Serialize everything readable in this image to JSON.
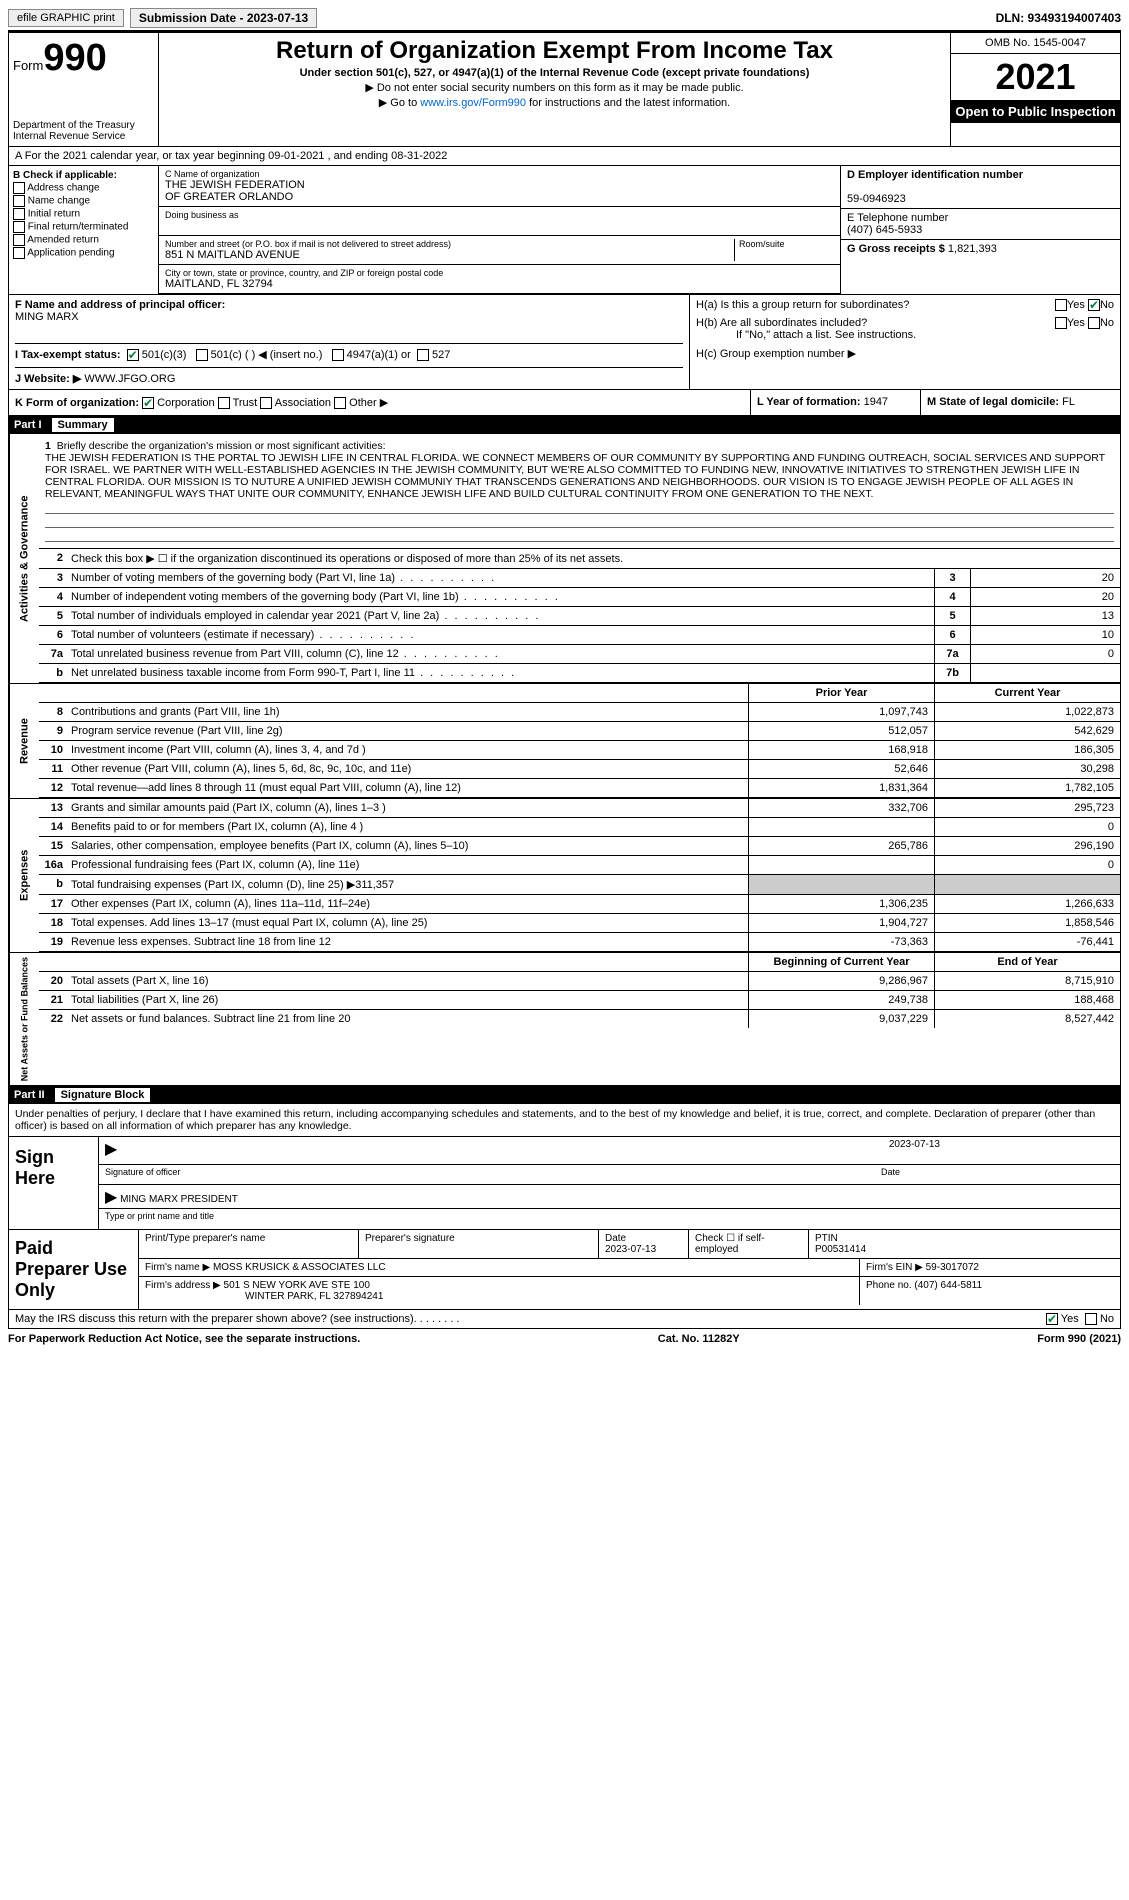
{
  "top": {
    "efile": "efile GRAPHIC print",
    "submission_label": "Submission Date - 2023-07-13",
    "dln": "DLN: 93493194007403"
  },
  "header": {
    "form_word": "Form",
    "form_num": "990",
    "dept": "Department of the Treasury",
    "irs": "Internal Revenue Service",
    "title": "Return of Organization Exempt From Income Tax",
    "sub": "Under section 501(c), 527, or 4947(a)(1) of the Internal Revenue Code (except private foundations)",
    "note1": "▶ Do not enter social security numbers on this form as it may be made public.",
    "note2_pre": "▶ Go to ",
    "note2_link": "www.irs.gov/Form990",
    "note2_post": " for instructions and the latest information.",
    "omb": "OMB No. 1545-0047",
    "year": "2021",
    "open": "Open to Public Inspection"
  },
  "line_a": "A For the 2021 calendar year, or tax year beginning 09-01-2021   , and ending 08-31-2022",
  "box_b": {
    "title": "B Check if applicable:",
    "items": [
      "Address change",
      "Name change",
      "Initial return",
      "Final return/terminated",
      "Amended return",
      "Application pending"
    ]
  },
  "box_c": {
    "name_label": "C Name of organization",
    "name1": "THE JEWISH FEDERATION",
    "name2": "OF GREATER ORLANDO",
    "dba_label": "Doing business as",
    "dba": "",
    "addr_label": "Number and street (or P.O. box if mail is not delivered to street address)",
    "room_label": "Room/suite",
    "addr": "851 N MAITLAND AVENUE",
    "city_label": "City or town, state or province, country, and ZIP or foreign postal code",
    "city": "MAITLAND, FL  32794"
  },
  "box_d": {
    "label": "D Employer identification number",
    "val": "59-0946923"
  },
  "box_e": {
    "label": "E Telephone number",
    "val": "(407) 645-5933"
  },
  "box_g": {
    "label": "G Gross receipts $",
    "val": "1,821,393"
  },
  "box_f": {
    "label": "F  Name and address of principal officer:",
    "val": "MING MARX"
  },
  "box_h": {
    "a": "H(a)  Is this a group return for subordinates?",
    "b": "H(b)  Are all subordinates included?",
    "bnote": "If \"No,\" attach a list. See instructions.",
    "c": "H(c)  Group exemption number ▶"
  },
  "box_i": {
    "label": "I  Tax-exempt status:",
    "c3": "501(c)(3)",
    "c": "501(c) (   ) ◀ (insert no.)",
    "a1": "4947(a)(1) or",
    "s527": "527"
  },
  "box_j": {
    "label": "J  Website: ▶",
    "val": "WWW.JFGO.ORG"
  },
  "box_k": {
    "label": "K Form of organization:",
    "corp": "Corporation",
    "trust": "Trust",
    "assoc": "Association",
    "other": "Other ▶"
  },
  "box_l": {
    "label": "L Year of formation:",
    "val": "1947"
  },
  "box_m": {
    "label": "M State of legal domicile:",
    "val": "FL"
  },
  "part1": {
    "num": "Part I",
    "title": "Summary"
  },
  "gov": {
    "tab": "Activities & Governance",
    "l1": "Briefly describe the organization's mission or most significant activities:",
    "mission": "THE JEWISH FEDERATION IS THE PORTAL TO JEWISH LIFE IN CENTRAL FLORIDA. WE CONNECT MEMBERS OF OUR COMMUNITY BY SUPPORTING AND FUNDING OUTREACH, SOCIAL SERVICES AND SUPPORT FOR ISRAEL. WE PARTNER WITH WELL-ESTABLISHED AGENCIES IN THE JEWISH COMMUNITY, BUT WE'RE ALSO COMMITTED TO FUNDING NEW, INNOVATIVE INITIATIVES TO STRENGTHEN JEWISH LIFE IN CENTRAL FLORIDA. OUR MISSION IS TO NUTURE A UNIFIED JEWISH COMMUNIY THAT TRANSCENDS GENERATIONS AND NEIGHBORHOODS. OUR VISION IS TO ENGAGE JEWISH PEOPLE OF ALL AGES IN RELEVANT, MEANINGFUL WAYS THAT UNITE OUR COMMUNITY, ENHANCE JEWISH LIFE AND BUILD CULTURAL CONTINUITY FROM ONE GENERATION TO THE NEXT.",
    "l2": "Check this box ▶ ☐ if the organization discontinued its operations or disposed of more than 25% of its net assets.",
    "rows": [
      {
        "n": "3",
        "t": "Number of voting members of the governing body (Part VI, line 1a)",
        "bx": "3",
        "v": "20"
      },
      {
        "n": "4",
        "t": "Number of independent voting members of the governing body (Part VI, line 1b)",
        "bx": "4",
        "v": "20"
      },
      {
        "n": "5",
        "t": "Total number of individuals employed in calendar year 2021 (Part V, line 2a)",
        "bx": "5",
        "v": "13"
      },
      {
        "n": "6",
        "t": "Total number of volunteers (estimate if necessary)",
        "bx": "6",
        "v": "10"
      },
      {
        "n": "7a",
        "t": "Total unrelated business revenue from Part VIII, column (C), line 12",
        "bx": "7a",
        "v": "0"
      },
      {
        "n": "b",
        "t": "Net unrelated business taxable income from Form 990-T, Part I, line 11",
        "bx": "7b",
        "v": ""
      }
    ]
  },
  "rev": {
    "tab": "Revenue",
    "head_prior": "Prior Year",
    "head_curr": "Current Year",
    "rows": [
      {
        "n": "8",
        "t": "Contributions and grants (Part VIII, line 1h)",
        "p": "1,097,743",
        "c": "1,022,873"
      },
      {
        "n": "9",
        "t": "Program service revenue (Part VIII, line 2g)",
        "p": "512,057",
        "c": "542,629"
      },
      {
        "n": "10",
        "t": "Investment income (Part VIII, column (A), lines 3, 4, and 7d )",
        "p": "168,918",
        "c": "186,305"
      },
      {
        "n": "11",
        "t": "Other revenue (Part VIII, column (A), lines 5, 6d, 8c, 9c, 10c, and 11e)",
        "p": "52,646",
        "c": "30,298"
      },
      {
        "n": "12",
        "t": "Total revenue—add lines 8 through 11 (must equal Part VIII, column (A), line 12)",
        "p": "1,831,364",
        "c": "1,782,105"
      }
    ]
  },
  "exp": {
    "tab": "Expenses",
    "rows": [
      {
        "n": "13",
        "t": "Grants and similar amounts paid (Part IX, column (A), lines 1–3 )",
        "p": "332,706",
        "c": "295,723"
      },
      {
        "n": "14",
        "t": "Benefits paid to or for members (Part IX, column (A), line 4 )",
        "p": "",
        "c": "0"
      },
      {
        "n": "15",
        "t": "Salaries, other compensation, employee benefits (Part IX, column (A), lines 5–10)",
        "p": "265,786",
        "c": "296,190"
      },
      {
        "n": "16a",
        "t": "Professional fundraising fees (Part IX, column (A), line 11e)",
        "p": "",
        "c": "0"
      },
      {
        "n": "b",
        "t": "Total fundraising expenses (Part IX, column (D), line 25) ▶311,357",
        "p": "SHADE",
        "c": "SHADE"
      },
      {
        "n": "17",
        "t": "Other expenses (Part IX, column (A), lines 11a–11d, 11f–24e)",
        "p": "1,306,235",
        "c": "1,266,633"
      },
      {
        "n": "18",
        "t": "Total expenses. Add lines 13–17 (must equal Part IX, column (A), line 25)",
        "p": "1,904,727",
        "c": "1,858,546"
      },
      {
        "n": "19",
        "t": "Revenue less expenses. Subtract line 18 from line 12",
        "p": "-73,363",
        "c": "-76,441"
      }
    ]
  },
  "net": {
    "tab": "Net Assets or Fund Balances",
    "head_begin": "Beginning of Current Year",
    "head_end": "End of Year",
    "rows": [
      {
        "n": "20",
        "t": "Total assets (Part X, line 16)",
        "p": "9,286,967",
        "c": "8,715,910"
      },
      {
        "n": "21",
        "t": "Total liabilities (Part X, line 26)",
        "p": "249,738",
        "c": "188,468"
      },
      {
        "n": "22",
        "t": "Net assets or fund balances. Subtract line 21 from line 20",
        "p": "9,037,229",
        "c": "8,527,442"
      }
    ]
  },
  "part2": {
    "num": "Part II",
    "title": "Signature Block"
  },
  "penalty": "Under penalties of perjury, I declare that I have examined this return, including accompanying schedules and statements, and to the best of my knowledge and belief, it is true, correct, and complete. Declaration of preparer (other than officer) is based on all information of which preparer has any knowledge.",
  "sign": {
    "label": "Sign Here",
    "sig_officer": "Signature of officer",
    "date": "Date",
    "date_val": "2023-07-13",
    "name": "MING MARX  PRESIDENT",
    "name_label": "Type or print name and title"
  },
  "prep": {
    "label": "Paid Preparer Use Only",
    "h_name": "Print/Type preparer's name",
    "h_sig": "Preparer's signature",
    "h_date": "Date",
    "h_date_val": "2023-07-13",
    "h_check": "Check ☐ if self-employed",
    "h_ptin": "PTIN",
    "ptin": "P00531414",
    "firm_name_l": "Firm's name    ▶",
    "firm_name": "MOSS KRUSICK & ASSOCIATES LLC",
    "firm_ein_l": "Firm's EIN ▶",
    "firm_ein": "59-3017072",
    "firm_addr_l": "Firm's address ▶",
    "firm_addr": "501 S NEW YORK AVE STE 100",
    "firm_city": "WINTER PARK, FL  327894241",
    "phone_l": "Phone no.",
    "phone": "(407) 644-5811"
  },
  "discuss": "May the IRS discuss this return with the preparer shown above? (see instructions)",
  "footer": {
    "paperwork": "For Paperwork Reduction Act Notice, see the separate instructions.",
    "cat": "Cat. No. 11282Y",
    "form": "Form 990 (2021)"
  },
  "yes": "Yes",
  "no": "No"
}
